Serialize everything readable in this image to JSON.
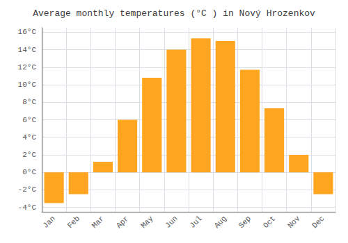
{
  "chart_data": {
    "type": "bar",
    "title": "Average monthly temperatures (°C ) in Nový Hrozenkov",
    "categories": [
      "Jan",
      "Feb",
      "Mar",
      "Apr",
      "May",
      "Jun",
      "Jul",
      "Aug",
      "Sep",
      "Oct",
      "Nov",
      "Dec"
    ],
    "values": [
      -3.5,
      -2.5,
      1.2,
      6.0,
      10.8,
      14.0,
      15.3,
      15.0,
      11.7,
      7.3,
      2.0,
      -2.5
    ],
    "color": "#FFA520",
    "ylim": [
      -4.5,
      16.5
    ],
    "yticks": [
      {
        "value": -4,
        "label": "-4°C"
      },
      {
        "value": -2,
        "label": "-2°C"
      },
      {
        "value": 0,
        "label": "0°C"
      },
      {
        "value": 2,
        "label": "2°C"
      },
      {
        "value": 4,
        "label": "4°C"
      },
      {
        "value": 6,
        "label": "6°C"
      },
      {
        "value": 8,
        "label": "8°C"
      },
      {
        "value": 10,
        "label": "10°C"
      },
      {
        "value": 12,
        "label": "12°C"
      },
      {
        "value": 14,
        "label": "14°C"
      },
      {
        "value": 16,
        "label": "16°C"
      }
    ],
    "grid": true
  }
}
